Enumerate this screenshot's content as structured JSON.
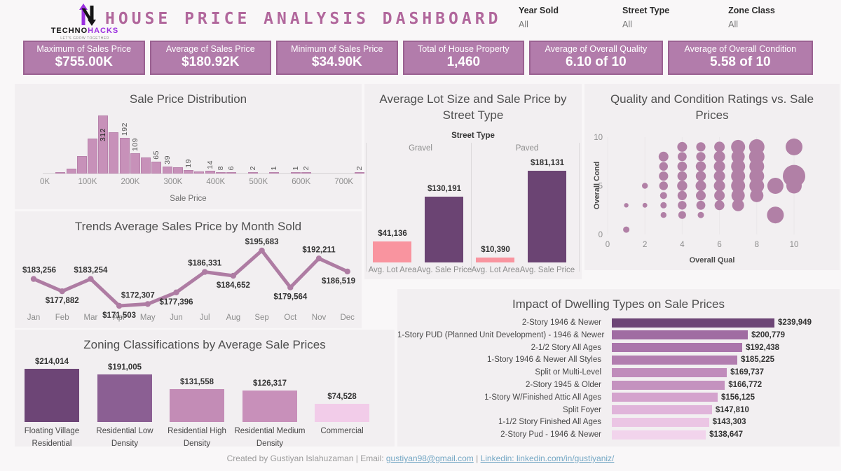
{
  "header": {
    "brand_black": "TECHNO",
    "brand_purple": "HACKS",
    "tagline": "LET'S GROW TOGETHER",
    "title": "HOUSE PRICE ANALYSIS DASHBOARD",
    "filters": [
      {
        "label": "Year Sold",
        "value": "All"
      },
      {
        "label": "Street Type",
        "value": "All"
      },
      {
        "label": "Zone Class",
        "value": "All"
      }
    ]
  },
  "kpis": [
    {
      "label": "Maximum of Sales Price",
      "value": "$755.00K"
    },
    {
      "label": "Average of Sales Price",
      "value": "$180.92K"
    },
    {
      "label": "Minimum of Sales Price",
      "value": "$34.90K"
    },
    {
      "label": "Total of House Property",
      "value": "1,460"
    },
    {
      "label": "Average of Overall Quality",
      "value": "6.10 of 10"
    },
    {
      "label": "Average of Overall Condition",
      "value": "5.58 of 10"
    }
  ],
  "colors": {
    "accent": "#b1679c",
    "kpi_bg": "#b27cab",
    "kpi_border": "#9a6191",
    "hist_bar": "#c791b9",
    "line": "#ae7ca3",
    "lot_area_bar": "#f9949f",
    "sale_price_bar": "#6b4473",
    "bubble": "#b180a6"
  },
  "chart_data": [
    {
      "id": "sale_price_distribution",
      "type": "bar",
      "title": "Sale Price Distribution",
      "xlabel": "Sale Price",
      "x_ticks": [
        "0K",
        "100K",
        "200K",
        "300K",
        "400K",
        "500K",
        "600K",
        "700K"
      ],
      "bin_width_k": 25,
      "bins": [
        {
          "start_k": 25,
          "count": 8,
          "label": ""
        },
        {
          "start_k": 50,
          "count": 25,
          "label": ""
        },
        {
          "start_k": 75,
          "count": 94,
          "label": ""
        },
        {
          "start_k": 100,
          "count": 187,
          "label": ""
        },
        {
          "start_k": 125,
          "count": 312,
          "label": "312"
        },
        {
          "start_k": 150,
          "count": 221,
          "label": ""
        },
        {
          "start_k": 175,
          "count": 192,
          "label": "192"
        },
        {
          "start_k": 200,
          "count": 109,
          "label": "109"
        },
        {
          "start_k": 225,
          "count": 88,
          "label": ""
        },
        {
          "start_k": 250,
          "count": 65,
          "label": "65"
        },
        {
          "start_k": 275,
          "count": 39,
          "label": "39"
        },
        {
          "start_k": 300,
          "count": 33,
          "label": ""
        },
        {
          "start_k": 325,
          "count": 19,
          "label": "19"
        },
        {
          "start_k": 350,
          "count": 12,
          "label": ""
        },
        {
          "start_k": 375,
          "count": 14,
          "label": "14"
        },
        {
          "start_k": 400,
          "count": 8,
          "label": "8"
        },
        {
          "start_k": 425,
          "count": 6,
          "label": "6"
        },
        {
          "start_k": 475,
          "count": 2,
          "label": "2"
        },
        {
          "start_k": 525,
          "count": 1,
          "label": "1"
        },
        {
          "start_k": 575,
          "count": 1,
          "label": "1"
        },
        {
          "start_k": 600,
          "count": 2,
          "label": "2"
        },
        {
          "start_k": 725,
          "count": 2,
          "label": "2"
        }
      ]
    },
    {
      "id": "monthly_trend",
      "type": "line",
      "title": "Trends Average Sales Price by Month Sold",
      "categories": [
        "Jan",
        "Feb",
        "Mar",
        "Apr",
        "May",
        "Jun",
        "Jul",
        "Aug",
        "Sep",
        "Oct",
        "Nov",
        "Dec"
      ],
      "values": [
        183256,
        177882,
        183254,
        171503,
        172307,
        177396,
        186331,
        184652,
        195683,
        179564,
        192211,
        186519
      ],
      "labels": [
        "$183,256",
        "$177,882",
        "$183,254",
        "$171,503",
        "$172,307",
        "$177,396",
        "$186,331",
        "$184,652",
        "$195,683",
        "$179,564",
        "$192,211",
        "$186,519"
      ],
      "label_positions": [
        "above",
        "below",
        "above",
        "below",
        "above",
        "below",
        "above",
        "below",
        "above",
        "below",
        "above",
        "below"
      ]
    },
    {
      "id": "street_type",
      "type": "bar",
      "title": "Average Lot Size and Sale Price by Street Type",
      "column_header": "Street Type",
      "groups": [
        {
          "name": "Gravel",
          "bars": [
            {
              "label": "Avg. Lot Area",
              "value": 41136,
              "display": "$41,136",
              "color": "#f9949f"
            },
            {
              "label": "Avg. Sale Price",
              "value": 130191,
              "display": "$130,191",
              "color": "#6b4473"
            }
          ]
        },
        {
          "name": "Paved",
          "bars": [
            {
              "label": "Avg. Lot Area",
              "value": 10390,
              "display": "$10,390",
              "color": "#f9949f"
            },
            {
              "label": "Avg. Sale Price",
              "value": 181131,
              "display": "$181,131",
              "color": "#6b4473"
            }
          ]
        }
      ]
    },
    {
      "id": "quality_condition",
      "type": "scatter",
      "title": "Quality and Condition Ratings vs. Sale Prices",
      "xlabel": "Overall Qual",
      "ylabel": "Overall Cond",
      "x_ticks": [
        0,
        2,
        4,
        6,
        8,
        10
      ],
      "y_ticks": [
        0,
        5,
        10
      ],
      "xlim": [
        0,
        10
      ],
      "ylim": [
        0,
        10
      ],
      "points_qual_cond_size": [
        [
          1,
          0.5,
          4.5
        ],
        [
          1,
          3,
          3.2
        ],
        [
          2,
          3,
          3.4
        ],
        [
          2,
          5,
          4.2
        ],
        [
          3,
          2,
          4.2
        ],
        [
          3,
          3,
          4.5
        ],
        [
          3,
          4,
          5
        ],
        [
          3,
          5,
          6.2
        ],
        [
          3,
          6,
          6.6
        ],
        [
          3,
          7,
          6.2
        ],
        [
          3,
          8,
          7
        ],
        [
          4,
          2,
          5.5
        ],
        [
          4,
          3,
          6.2
        ],
        [
          4,
          4,
          6.6
        ],
        [
          4,
          5,
          7.2
        ],
        [
          4,
          6,
          6.8
        ],
        [
          4,
          7,
          6.8
        ],
        [
          4,
          8,
          6.4
        ],
        [
          4,
          9,
          7
        ],
        [
          5,
          2,
          4.5
        ],
        [
          5,
          3,
          6.4
        ],
        [
          5,
          4,
          7
        ],
        [
          5,
          5,
          7.5
        ],
        [
          5,
          6,
          7.2
        ],
        [
          5,
          7,
          7.2
        ],
        [
          5,
          8,
          6.6
        ],
        [
          5,
          9,
          6.6
        ],
        [
          6,
          3,
          7
        ],
        [
          6,
          4,
          7.5
        ],
        [
          6,
          5,
          8
        ],
        [
          6,
          6,
          8
        ],
        [
          6,
          7,
          8
        ],
        [
          6,
          8,
          8
        ],
        [
          6,
          9,
          7.5
        ],
        [
          7,
          3,
          8.5
        ],
        [
          7,
          4,
          9.5
        ],
        [
          7,
          5,
          10
        ],
        [
          7,
          6,
          10
        ],
        [
          7,
          7,
          10
        ],
        [
          7,
          8,
          9.5
        ],
        [
          7,
          9,
          10
        ],
        [
          8,
          4,
          9.5
        ],
        [
          8,
          5,
          10.5
        ],
        [
          8,
          6,
          10.5
        ],
        [
          8,
          7,
          10.5
        ],
        [
          8,
          8,
          11
        ],
        [
          8,
          9,
          11
        ],
        [
          9,
          2,
          12
        ],
        [
          9,
          5,
          11.5
        ],
        [
          10,
          5,
          11
        ],
        [
          10,
          6,
          16
        ],
        [
          10,
          9,
          12
        ]
      ]
    },
    {
      "id": "zoning",
      "type": "bar",
      "title": "Zoning Classifications by Average Sale Prices",
      "bars": [
        {
          "label": "Floating Village Residential",
          "value": 214014,
          "display": "$214,014",
          "color": "#6d4576"
        },
        {
          "label": "Residential Low Density",
          "value": 191005,
          "display": "$191,005",
          "color": "#8b5f93"
        },
        {
          "label": "Residential High Density",
          "value": 131558,
          "display": "$131,558",
          "color": "#c38cb6"
        },
        {
          "label": "Residential Medium Density",
          "value": 126317,
          "display": "$126,317",
          "color": "#c890ba"
        },
        {
          "label": "Commercial",
          "value": 74528,
          "display": "$74,528",
          "color": "#f2cce9"
        }
      ]
    },
    {
      "id": "dwelling_types",
      "type": "bar",
      "title": "Impact of Dwelling Types on Sale Prices",
      "rows": [
        {
          "label": "2-Story 1946 & Newer",
          "value": 239949,
          "display": "$239,949",
          "color": "#6d4576"
        },
        {
          "label": "1-Story PUD (Planned Unit Development) - 1946 & Newer",
          "value": 200779,
          "display": "$200,779",
          "color": "#a06ca2"
        },
        {
          "label": "2-1/2 Story All Ages",
          "value": 192438,
          "display": "$192,438",
          "color": "#aa75ab"
        },
        {
          "label": "1-Story 1946 & Newer All Styles",
          "value": 185225,
          "display": "$185,225",
          "color": "#b27daf"
        },
        {
          "label": "Split or Multi-Level",
          "value": 169737,
          "display": "$169,737",
          "color": "#c08cbb"
        },
        {
          "label": "2-Story 1945 & Older",
          "value": 166772,
          "display": "$166,772",
          "color": "#c492bf"
        },
        {
          "label": "1-Story W/Finished Attic All Ages",
          "value": 156125,
          "display": "$156,125",
          "color": "#d4a3cd"
        },
        {
          "label": "Split Foyer",
          "value": 147810,
          "display": "$147,810",
          "color": "#e0b4da"
        },
        {
          "label": "1-1/2 Story Finished All Ages",
          "value": 143303,
          "display": "$143,303",
          "color": "#ebc5e4"
        },
        {
          "label": "2-Story Pud - 1946 & Newer",
          "value": 138647,
          "display": "$138,647",
          "color": "#f2d4ec"
        }
      ]
    }
  ],
  "footer": {
    "created_by": "Created by Gustiyan Islahuzaman",
    "separator": "|",
    "email_prefix": "Email:",
    "email_link": "gustiyan98@gmail.com",
    "linkedin_link": "Linkedin:  linkedin.com/in/gustiyaniz/"
  }
}
